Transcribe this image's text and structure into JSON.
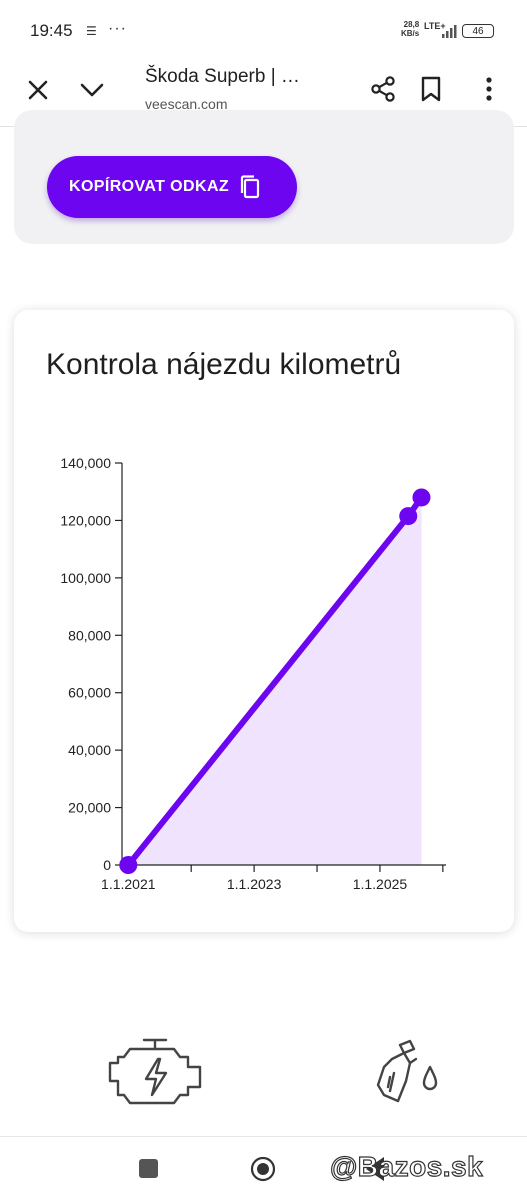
{
  "status_bar": {
    "time": "19:45",
    "net_speed_value": "28,8",
    "net_speed_unit": "KB/s",
    "network": "LTE+",
    "battery": "46"
  },
  "browser": {
    "page_title": "Škoda Superb | …",
    "url": "veescan.com"
  },
  "share_section": {
    "copy_button_label": "KOPÍROVAT ODKAZ"
  },
  "mileage_card": {
    "title": "Kontrola nájezdu kilometrů"
  },
  "chart_data": {
    "type": "area",
    "title": "Kontrola nájezdu kilometrů",
    "xlabel": "",
    "ylabel": "",
    "x_tick_labels": [
      "1.1.2021",
      "1.1.2023",
      "1.1.2025"
    ],
    "x_ticks": [
      2021.0,
      2023.0,
      2025.0
    ],
    "xlim": [
      2020.9,
      2026.05
    ],
    "ylim": [
      0,
      140000
    ],
    "y_ticks": [
      0,
      20000,
      40000,
      60000,
      80000,
      100000,
      120000,
      140000
    ],
    "y_tick_labels": [
      "0",
      "20,000",
      "40,000",
      "60,000",
      "80,000",
      "100,000",
      "120,000",
      "140,000"
    ],
    "series": [
      {
        "x": [
          2021.0,
          2025.45,
          2025.66
        ],
        "y": [
          0,
          121500,
          128000
        ]
      }
    ],
    "grid": false,
    "line_color": "#6d05f0",
    "fill_color": "#efe3fd"
  },
  "feature_icons": [
    "engine-icon",
    "fuel-pump-icon"
  ],
  "watermark": "@Bazos.sk",
  "colors": {
    "accent": "#6d05f0",
    "card_grey": "#f1f1f3"
  }
}
